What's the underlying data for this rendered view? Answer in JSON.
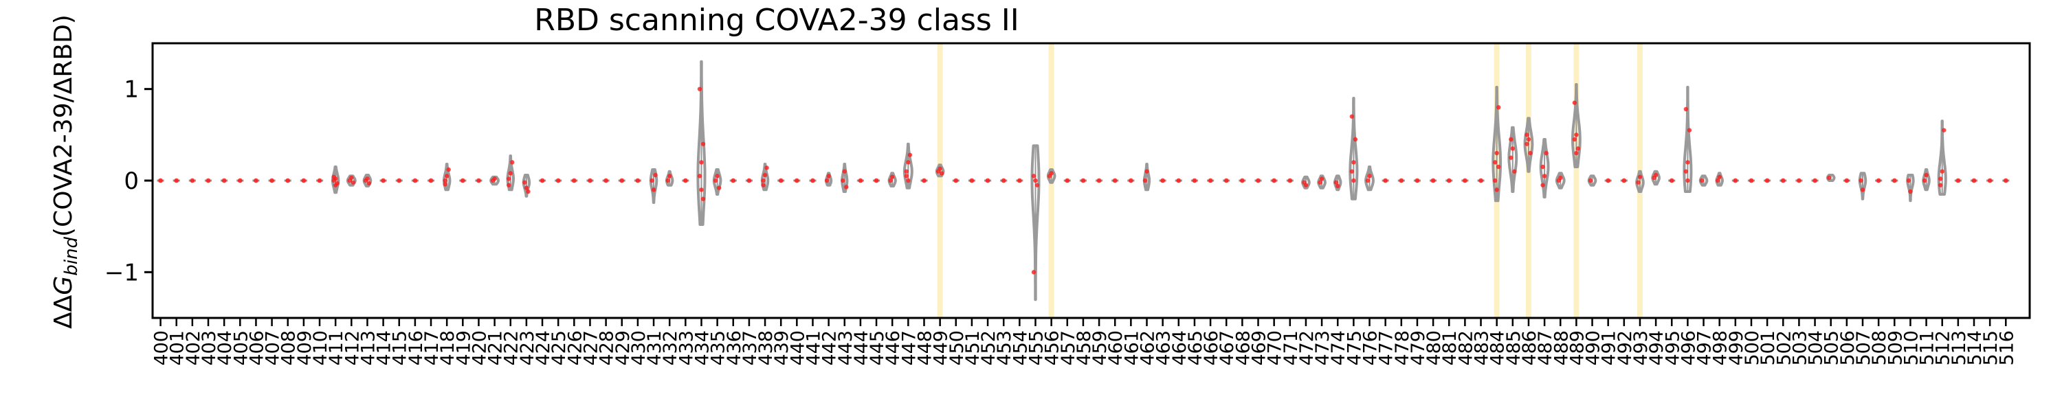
{
  "chart_data": {
    "type": "violin",
    "title": "RBD scanning COVA2-39 class II",
    "xlabel": "",
    "ylabel": "ΔΔG_bind(COVA2-39/ΔRBD)",
    "ylabel_parts": {
      "pre": "ΔΔ",
      "g": "G",
      "sub": "bind",
      "post": "(COVA2-39/ΔRBD)"
    },
    "xlim": [
      399.5,
      517.5
    ],
    "ylim": [
      -1.5,
      1.5
    ],
    "yticks": [
      -1,
      0,
      1
    ],
    "yticklabels": [
      "−1",
      "0",
      "1"
    ],
    "x_tick_start": 400,
    "x_tick_end": 516,
    "highlighted_residues": [
      449,
      456,
      484,
      486,
      489,
      493
    ],
    "highlight_color": "#fdf1c4",
    "violin_edge_color": "#9a9a9a",
    "point_color": "#ff1a1a",
    "grid": false,
    "violins": [
      {
        "x": 411,
        "median": 0.0,
        "min": -0.13,
        "max": 0.15,
        "width": 0.35,
        "points": [
          0.0,
          0.02,
          -0.03,
          0.04,
          -0.05
        ]
      },
      {
        "x": 412,
        "median": 0.0,
        "min": -0.05,
        "max": 0.05,
        "width": 0.45,
        "points": [
          0.0,
          0.03,
          -0.02
        ]
      },
      {
        "x": 413,
        "median": 0.0,
        "min": -0.06,
        "max": 0.06,
        "width": 0.4,
        "points": [
          0.0,
          0.02,
          -0.03
        ]
      },
      {
        "x": 418,
        "median": 0.0,
        "min": -0.1,
        "max": 0.18,
        "width": 0.35,
        "points": [
          0.0,
          0.05,
          0.12,
          -0.04
        ]
      },
      {
        "x": 421,
        "median": 0.0,
        "min": -0.04,
        "max": 0.04,
        "width": 0.45,
        "points": [
          0.0,
          0.02
        ]
      },
      {
        "x": 422,
        "median": 0.02,
        "min": -0.1,
        "max": 0.27,
        "width": 0.35,
        "points": [
          0.02,
          0.08,
          0.2,
          -0.05
        ]
      },
      {
        "x": 423,
        "median": -0.02,
        "min": -0.17,
        "max": 0.06,
        "width": 0.35,
        "points": [
          -0.02,
          -0.08,
          -0.12
        ]
      },
      {
        "x": 431,
        "median": 0.0,
        "min": -0.24,
        "max": 0.12,
        "width": 0.35,
        "points": [
          0.0,
          -0.1,
          0.06
        ]
      },
      {
        "x": 432,
        "median": 0.0,
        "min": -0.05,
        "max": 0.1,
        "width": 0.35,
        "points": [
          0.0,
          0.05
        ]
      },
      {
        "x": 434,
        "median": 0.05,
        "min": -0.48,
        "max": 1.3,
        "width": 0.42,
        "points": [
          0.05,
          0.2,
          0.4,
          1.0,
          -0.1,
          -0.2
        ]
      },
      {
        "x": 435,
        "median": 0.0,
        "min": -0.15,
        "max": 0.12,
        "width": 0.4,
        "points": [
          0.0,
          0.05,
          -0.08
        ]
      },
      {
        "x": 438,
        "median": 0.0,
        "min": -0.1,
        "max": 0.18,
        "width": 0.35,
        "points": [
          0.0,
          0.06,
          0.14,
          -0.05
        ]
      },
      {
        "x": 442,
        "median": 0.0,
        "min": -0.05,
        "max": 0.08,
        "width": 0.3,
        "points": [
          0.0,
          0.05
        ]
      },
      {
        "x": 443,
        "median": 0.0,
        "min": -0.12,
        "max": 0.18,
        "width": 0.3,
        "points": [
          0.0,
          0.1,
          -0.07
        ]
      },
      {
        "x": 446,
        "median": 0.0,
        "min": -0.06,
        "max": 0.08,
        "width": 0.38,
        "points": [
          0.0,
          0.04
        ]
      },
      {
        "x": 447,
        "median": 0.1,
        "min": -0.08,
        "max": 0.4,
        "width": 0.45,
        "points": [
          0.1,
          0.2,
          0.28,
          0.05,
          0.0
        ]
      },
      {
        "x": 449,
        "median": 0.1,
        "min": 0.05,
        "max": 0.17,
        "width": 0.4,
        "points": [
          0.1,
          0.13,
          0.08
        ]
      },
      {
        "x": 455,
        "median": 0.0,
        "min": -1.3,
        "max": 0.38,
        "width": 0.42,
        "points": [
          0.05,
          0.0,
          -0.05,
          -1.0
        ]
      },
      {
        "x": 456,
        "median": 0.05,
        "min": -0.02,
        "max": 0.12,
        "width": 0.4,
        "points": [
          0.05,
          0.08
        ]
      },
      {
        "x": 462,
        "median": 0.0,
        "min": -0.1,
        "max": 0.18,
        "width": 0.3,
        "points": [
          0.0,
          0.1
        ]
      },
      {
        "x": 472,
        "median": -0.02,
        "min": -0.08,
        "max": 0.04,
        "width": 0.4,
        "points": [
          -0.02,
          -0.05
        ]
      },
      {
        "x": 473,
        "median": -0.02,
        "min": -0.08,
        "max": 0.05,
        "width": 0.4,
        "points": [
          -0.02,
          0.02
        ]
      },
      {
        "x": 474,
        "median": -0.02,
        "min": -0.1,
        "max": 0.05,
        "width": 0.35,
        "points": [
          -0.02,
          -0.06
        ]
      },
      {
        "x": 475,
        "median": 0.1,
        "min": -0.2,
        "max": 0.9,
        "width": 0.42,
        "points": [
          0.1,
          0.2,
          0.45,
          0.7,
          0.0
        ]
      },
      {
        "x": 476,
        "median": 0.0,
        "min": -0.1,
        "max": 0.15,
        "width": 0.45,
        "points": [
          0.0,
          0.05
        ]
      },
      {
        "x": 484,
        "median": 0.2,
        "min": -0.22,
        "max": 1.02,
        "width": 0.45,
        "points": [
          0.2,
          0.3,
          0.8,
          0.0,
          -0.1,
          0.15
        ]
      },
      {
        "x": 485,
        "median": 0.25,
        "min": -0.12,
        "max": 0.58,
        "width": 0.45,
        "points": [
          0.25,
          0.35,
          0.1,
          0.45
        ]
      },
      {
        "x": 486,
        "median": 0.4,
        "min": 0.1,
        "max": 0.68,
        "width": 0.45,
        "points": [
          0.4,
          0.45,
          0.3,
          0.5
        ]
      },
      {
        "x": 487,
        "median": 0.15,
        "min": -0.18,
        "max": 0.45,
        "width": 0.45,
        "points": [
          0.15,
          0.05,
          0.3,
          -0.05
        ]
      },
      {
        "x": 488,
        "median": 0.0,
        "min": -0.08,
        "max": 0.08,
        "width": 0.45,
        "points": [
          0.0,
          0.03
        ]
      },
      {
        "x": 489,
        "median": 0.45,
        "min": 0.15,
        "max": 1.05,
        "width": 0.45,
        "points": [
          0.45,
          0.5,
          0.35,
          0.85,
          0.3
        ]
      },
      {
        "x": 490,
        "median": 0.0,
        "min": -0.05,
        "max": 0.05,
        "width": 0.4,
        "points": [
          0.0
        ]
      },
      {
        "x": 493,
        "median": -0.02,
        "min": -0.12,
        "max": 0.1,
        "width": 0.4,
        "points": [
          -0.02,
          0.04
        ]
      },
      {
        "x": 494,
        "median": 0.03,
        "min": -0.04,
        "max": 0.1,
        "width": 0.4,
        "points": [
          0.03,
          0.06
        ]
      },
      {
        "x": 496,
        "median": 0.1,
        "min": -0.12,
        "max": 1.02,
        "width": 0.42,
        "points": [
          0.1,
          0.2,
          0.55,
          0.78,
          0.0
        ]
      },
      {
        "x": 497,
        "median": 0.0,
        "min": -0.05,
        "max": 0.05,
        "width": 0.4,
        "points": [
          0.0
        ]
      },
      {
        "x": 498,
        "median": 0.0,
        "min": -0.05,
        "max": 0.08,
        "width": 0.35,
        "points": [
          0.0,
          0.04
        ]
      },
      {
        "x": 505,
        "median": 0.03,
        "min": 0.0,
        "max": 0.06,
        "width": 0.4,
        "points": [
          0.03
        ]
      },
      {
        "x": 507,
        "median": 0.0,
        "min": -0.2,
        "max": 0.08,
        "width": 0.35,
        "points": [
          0.0,
          -0.1
        ]
      },
      {
        "x": 510,
        "median": 0.0,
        "min": -0.22,
        "max": 0.06,
        "width": 0.35,
        "points": [
          0.0,
          -0.12
        ]
      },
      {
        "x": 511,
        "median": 0.0,
        "min": -0.1,
        "max": 0.12,
        "width": 0.35,
        "points": [
          0.0,
          0.06
        ]
      },
      {
        "x": 512,
        "median": 0.02,
        "min": -0.15,
        "max": 0.65,
        "width": 0.42,
        "points": [
          0.02,
          0.1,
          0.55,
          -0.05
        ]
      }
    ]
  }
}
